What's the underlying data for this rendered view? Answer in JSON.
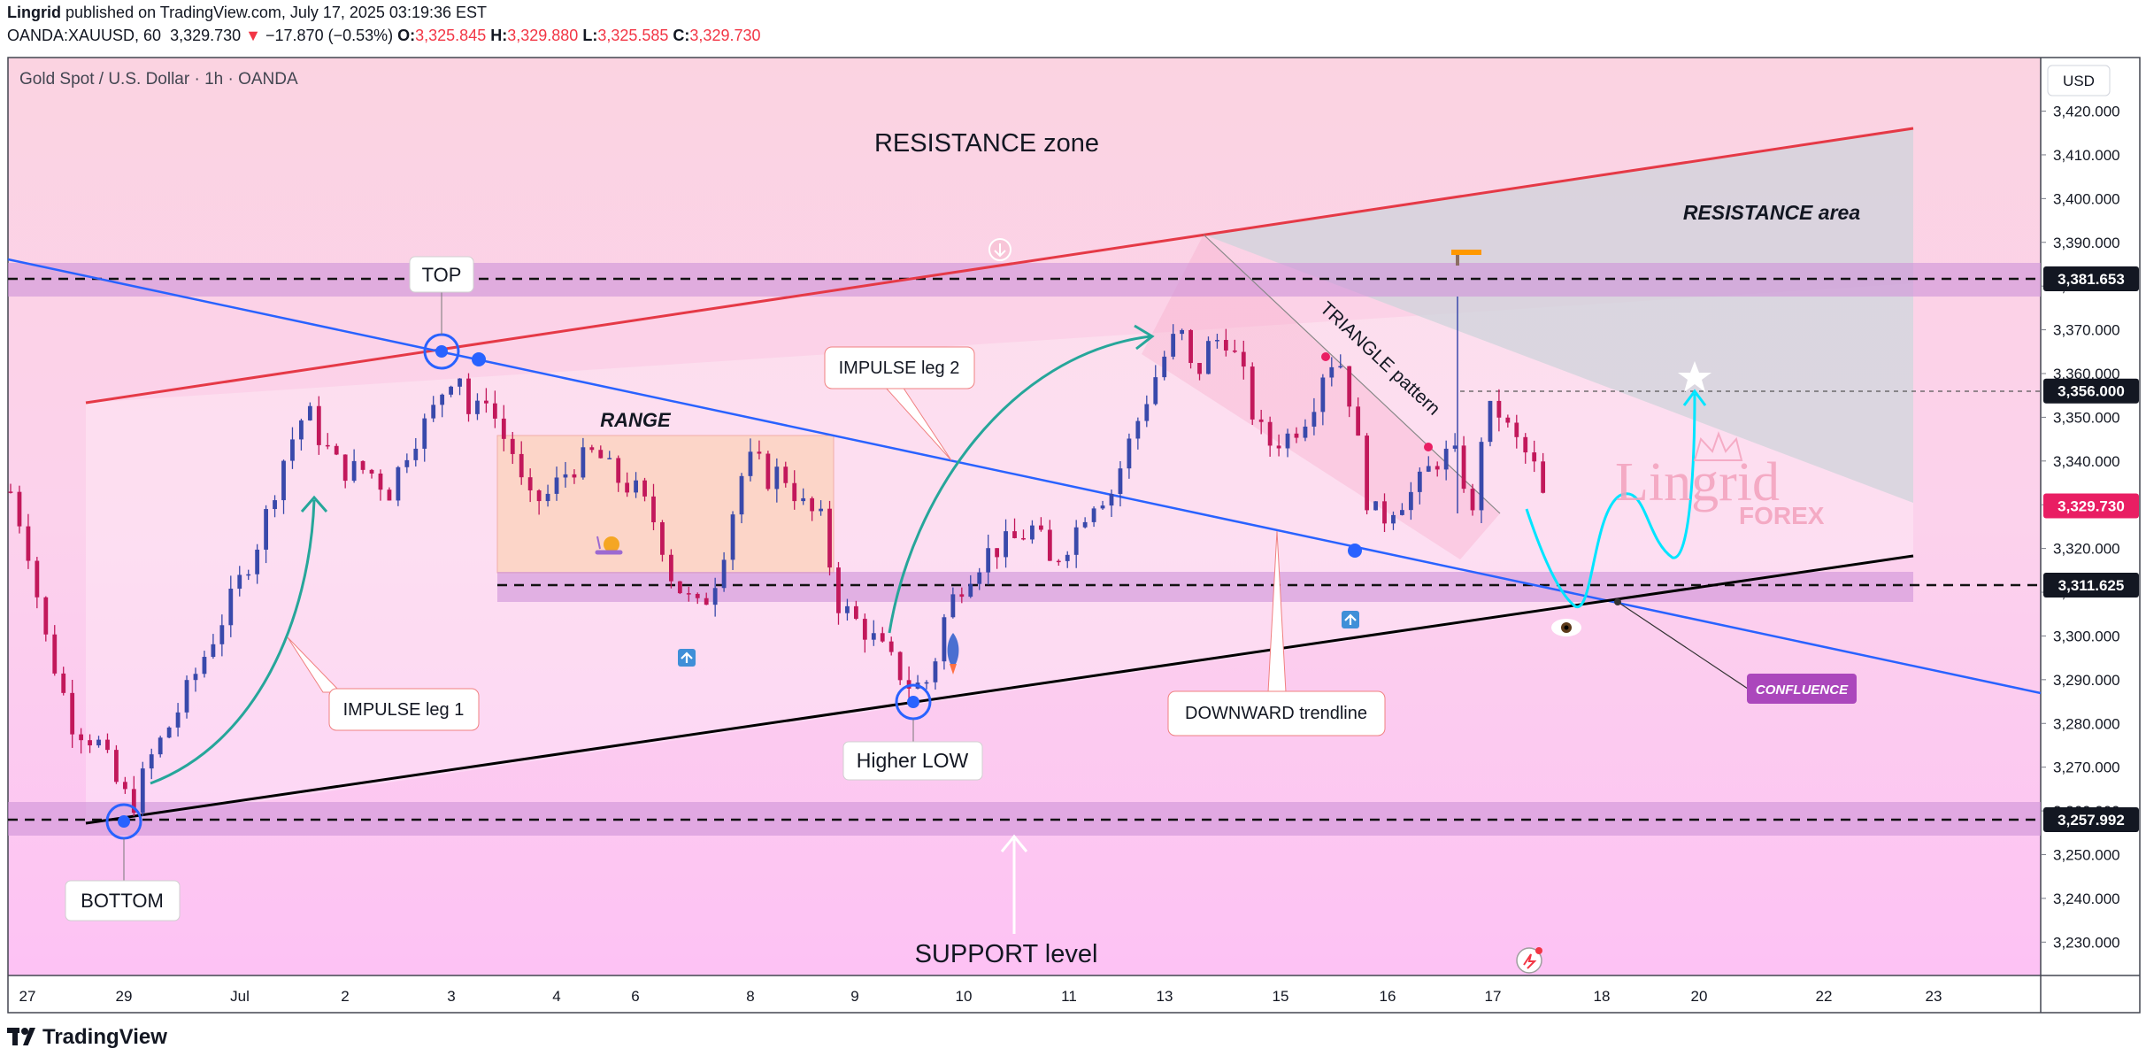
{
  "header": {
    "publisher": "Lingrid",
    "published_text": "published on TradingView.com, July 17, 2025 03:19:36 EST",
    "symbol": "OANDA:XAUUSD, 60",
    "price": "3,329.730",
    "change": "−17.870 (−0.53%)",
    "open_label": "O:",
    "open": "3,325.845",
    "high_label": "H:",
    "high": "3,329.880",
    "low_label": "L:",
    "low": "3,325.585",
    "close_label": "C:",
    "close": "3,329.730"
  },
  "chart_title": "Gold Spot / U.S. Dollar · 1h · OANDA",
  "currency": "USD",
  "footer_brand": "TradingView",
  "colors": {
    "up": "#3949ab",
    "down": "#c2185b",
    "resistance_line": "#e53946",
    "trend_line": "#2962ff",
    "support_line": "#000000",
    "zone": "#ce93d8",
    "projection": "#00e5ff",
    "arrow": "#26a69a",
    "confluence": "#ab47bc"
  },
  "chart_data": {
    "type": "candlestick",
    "symbol": "XAUUSD",
    "timeframe": "1h",
    "ylim": [
      3222,
      3428
    ],
    "y_ticks": [
      3230,
      3240,
      3250,
      3260,
      3270,
      3280,
      3290,
      3300,
      3310,
      3320,
      3330,
      3340,
      3350,
      3360,
      3370,
      3380,
      3390,
      3400,
      3410,
      3420
    ],
    "y_tick_labels": [
      "3,230.000",
      "3,240.000",
      "3,250.000",
      "3,260.000",
      "3,270.000",
      "3,280.000",
      "3,290.000",
      "3,300.000",
      "3,310.000",
      "3,320.000",
      "3,330.000",
      "3,340.000",
      "3,350.000",
      "3,360.000",
      "3,370.000",
      "3,380.000",
      "3,390.000",
      "3,400.000",
      "3,410.000",
      "3,420.000"
    ],
    "x_ticks": [
      "27",
      "29",
      "Jul",
      "2",
      "3",
      "4",
      "6",
      "8",
      "9",
      "10",
      "11",
      "13",
      "15",
      "16",
      "17",
      "18",
      "20",
      "22",
      "23"
    ],
    "price_badges": [
      {
        "value": 3381.653,
        "text": "3,381.653",
        "style": "dark"
      },
      {
        "value": 3356.0,
        "text": "3,356.000",
        "style": "dark"
      },
      {
        "value": 3329.73,
        "text": "3,329.730",
        "style": "current"
      },
      {
        "value": 3311.625,
        "text": "3,311.625",
        "style": "dark"
      },
      {
        "value": 3257.992,
        "text": "3,257.992",
        "style": "dark"
      }
    ],
    "path": [
      [
        0,
        3333
      ],
      [
        12,
        3321
      ],
      [
        25,
        3300
      ],
      [
        45,
        3280
      ],
      [
        65,
        3275
      ],
      [
        80,
        3264
      ],
      [
        90,
        3262
      ],
      [
        100,
        3271
      ],
      [
        120,
        3282
      ],
      [
        140,
        3295
      ],
      [
        160,
        3308
      ],
      [
        180,
        3322
      ],
      [
        200,
        3342
      ],
      [
        215,
        3352
      ],
      [
        225,
        3345
      ],
      [
        240,
        3338
      ],
      [
        260,
        3338
      ],
      [
        275,
        3333
      ],
      [
        290,
        3344
      ],
      [
        305,
        3350
      ],
      [
        315,
        3357
      ],
      [
        325,
        3362
      ],
      [
        335,
        3348
      ],
      [
        345,
        3356
      ],
      [
        355,
        3347
      ],
      [
        365,
        3342
      ],
      [
        375,
        3330
      ],
      [
        390,
        3332
      ],
      [
        405,
        3338
      ],
      [
        425,
        3342
      ],
      [
        440,
        3336
      ],
      [
        455,
        3333
      ],
      [
        470,
        3325
      ],
      [
        480,
        3314
      ],
      [
        490,
        3309
      ],
      [
        500,
        3306
      ],
      [
        510,
        3311
      ],
      [
        520,
        3322
      ],
      [
        530,
        3336
      ],
      [
        540,
        3341
      ],
      [
        550,
        3336
      ],
      [
        560,
        3338
      ],
      [
        575,
        3330
      ],
      [
        590,
        3326
      ],
      [
        600,
        3308
      ],
      [
        612,
        3304
      ],
      [
        625,
        3300
      ],
      [
        640,
        3294
      ],
      [
        655,
        3288
      ],
      [
        668,
        3290
      ],
      [
        680,
        3306
      ],
      [
        695,
        3314
      ],
      [
        710,
        3319
      ],
      [
        730,
        3322
      ],
      [
        745,
        3325
      ],
      [
        755,
        3316
      ],
      [
        770,
        3322
      ],
      [
        785,
        3331
      ],
      [
        800,
        3333
      ],
      [
        815,
        3346
      ],
      [
        830,
        3358
      ],
      [
        840,
        3365
      ],
      [
        850,
        3370
      ],
      [
        860,
        3358
      ],
      [
        870,
        3366
      ],
      [
        882,
        3369
      ],
      [
        895,
        3360
      ],
      [
        905,
        3348
      ],
      [
        915,
        3344
      ],
      [
        930,
        3346
      ],
      [
        945,
        3352
      ],
      [
        955,
        3362
      ],
      [
        965,
        3364
      ],
      [
        975,
        3352
      ],
      [
        985,
        3332
      ],
      [
        995,
        3326
      ],
      [
        1005,
        3330
      ],
      [
        1020,
        3333
      ],
      [
        1035,
        3340
      ],
      [
        1048,
        3342
      ],
      [
        1058,
        3334
      ],
      [
        1063,
        3326
      ],
      [
        1070,
        3350
      ],
      [
        1080,
        3352
      ],
      [
        1090,
        3346
      ],
      [
        1100,
        3342
      ],
      [
        1108,
        3338
      ],
      [
        1115,
        3330
      ]
    ],
    "y_axis_labels_y": "price",
    "levels": [
      {
        "name": "resistance",
        "value": 3381.653
      },
      {
        "name": "mid",
        "value": 3311.625
      },
      {
        "name": "support",
        "value": 3257.992
      }
    ]
  },
  "annotations": {
    "resistance_zone": "RESISTANCE zone",
    "resistance_area": "RESISTANCE area",
    "top": "TOP",
    "bottom": "BOTTOM",
    "range": "RANGE",
    "impulse1": "IMPULSE leg 1",
    "impulse2": "IMPULSE leg 2",
    "higher_low": "Higher LOW",
    "downward": "DOWNWARD trendline",
    "triangle": "TRIANGLE pattern",
    "support": "SUPPORT level",
    "confluence": "CONFLUENCE",
    "watermark_main": "Lingrid",
    "watermark_sub": "FOREX"
  }
}
